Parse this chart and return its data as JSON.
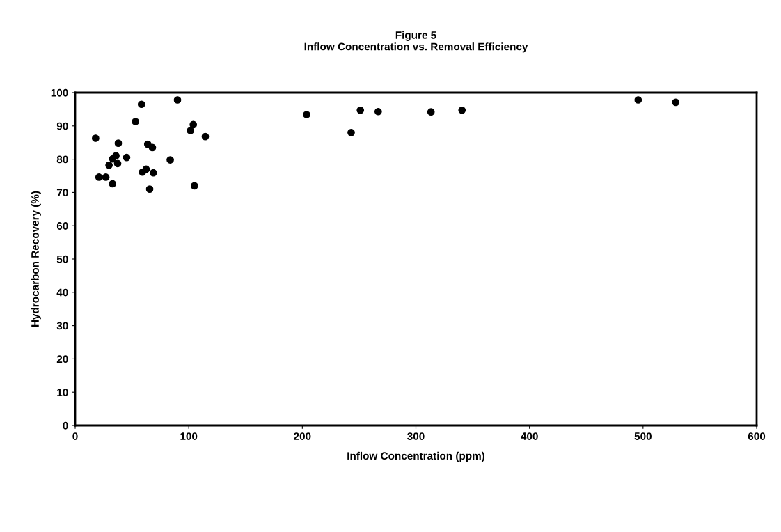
{
  "chart_data": {
    "type": "scatter",
    "title": "Figure 5\nInflow Concentration vs. Removal Efficiency",
    "xlabel": "Inflow Concentration (ppm)",
    "ylabel": "Hydrocarbon Recovery (%)",
    "x": [
      18.0,
      58.4,
      90.1,
      53.1,
      104.0,
      101.5,
      114.6,
      38.0,
      63.9,
      68.0,
      35.9,
      33.1,
      45.3,
      83.7,
      29.8,
      37.4,
      62.5,
      59.2,
      68.8,
      21.0,
      27.0,
      32.9,
      105.0,
      65.6,
      203.8,
      243,
      251.1,
      266.8,
      313.3,
      340.6,
      495.7,
      528.8
    ],
    "values": [
      86.3,
      96.5,
      97.8,
      91.3,
      90.4,
      88.6,
      86.8,
      84.8,
      84.5,
      83.5,
      81.0,
      80.1,
      80.5,
      79.8,
      78.2,
      78.7,
      77.0,
      76.1,
      75.9,
      74.6,
      74.6,
      72.6,
      72.0,
      71.0,
      93.4,
      88,
      94.7,
      94.3,
      94.2,
      94.7,
      97.8,
      97.1
    ],
    "color": "#000000",
    "marker": "circle",
    "grid": false,
    "xlim": [
      0,
      600
    ],
    "xticks": [
      0,
      100,
      200,
      300,
      400,
      500,
      600
    ],
    "ylim": [
      0,
      100
    ],
    "yticks": [
      0,
      10,
      20,
      30,
      40,
      50,
      60,
      70,
      80,
      90,
      100
    ]
  }
}
